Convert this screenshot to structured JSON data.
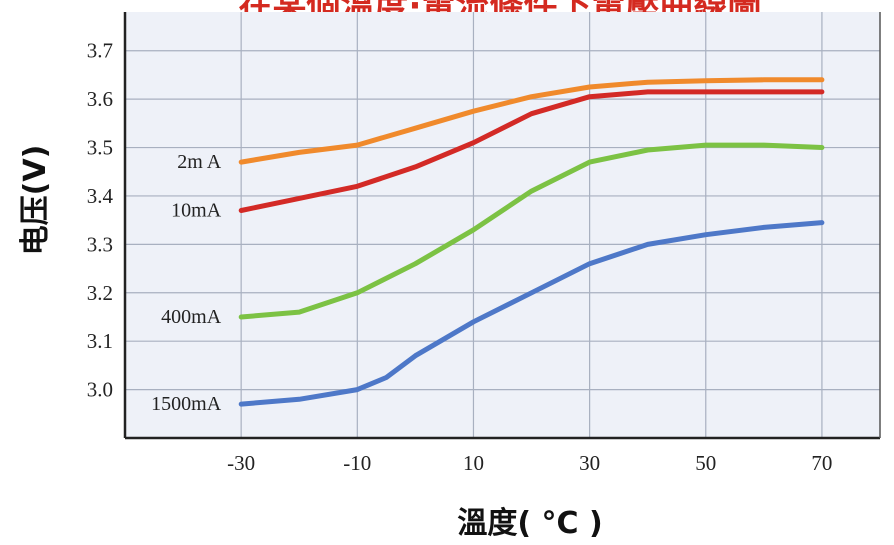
{
  "chart_data": {
    "type": "line",
    "title": "在某個溫度·電流條件下電壓曲線圖",
    "xlabel": "溫度( °C )",
    "ylabel": "电压(V)",
    "xlim": [
      -50,
      80
    ],
    "ylim": [
      2.9,
      3.78
    ],
    "xticks": [
      -30,
      -10,
      10,
      30,
      50,
      70
    ],
    "yticks": [
      3.0,
      3.1,
      3.2,
      3.3,
      3.4,
      3.5,
      3.6,
      3.7
    ],
    "ytick_labels": [
      "3.0",
      "3.1",
      "3.2",
      "3.3",
      "3.4",
      "3.5",
      "3.6",
      "3.7"
    ],
    "grid": true,
    "series": [
      {
        "name": "2m A",
        "color": "#f08a2c",
        "x": [
          -30,
          -20,
          -10,
          0,
          10,
          20,
          30,
          40,
          50,
          60,
          70
        ],
        "y": [
          3.47,
          3.49,
          3.505,
          3.54,
          3.575,
          3.605,
          3.625,
          3.635,
          3.638,
          3.64,
          3.64
        ]
      },
      {
        "name": "10mA",
        "color": "#d32a26",
        "x": [
          -30,
          -20,
          -10,
          0,
          10,
          20,
          30,
          40,
          50,
          60,
          70
        ],
        "y": [
          3.37,
          3.395,
          3.42,
          3.46,
          3.51,
          3.57,
          3.605,
          3.615,
          3.615,
          3.615,
          3.615
        ]
      },
      {
        "name": "400mA",
        "color": "#7cc244",
        "x": [
          -30,
          -20,
          -10,
          0,
          10,
          20,
          30,
          40,
          50,
          60,
          70
        ],
        "y": [
          3.15,
          3.16,
          3.2,
          3.26,
          3.33,
          3.41,
          3.47,
          3.495,
          3.505,
          3.505,
          3.5
        ]
      },
      {
        "name": "1500mA",
        "color": "#4e78c8",
        "x": [
          -30,
          -20,
          -10,
          -5,
          0,
          10,
          20,
          30,
          40,
          50,
          60,
          70
        ],
        "y": [
          2.97,
          2.98,
          3.0,
          3.025,
          3.07,
          3.14,
          3.2,
          3.26,
          3.3,
          3.32,
          3.335,
          3.345
        ]
      }
    ]
  }
}
